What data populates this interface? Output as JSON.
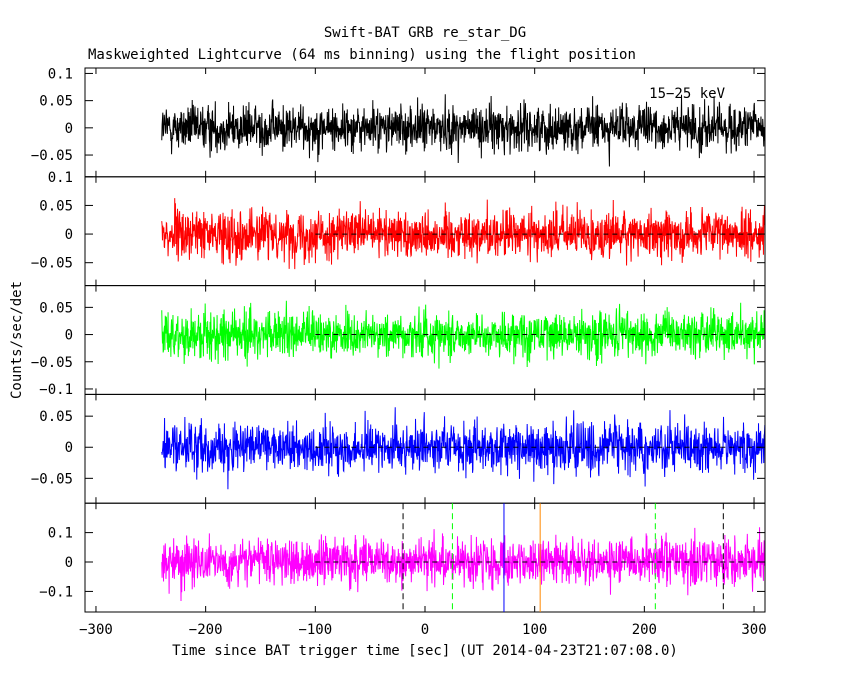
{
  "title": "Swift-BAT GRB re_star_DG",
  "subtitle": "Maskweighted Lightcurve (64 ms binning) using the flight position",
  "xlabel": "Time since BAT trigger time [sec] (UT 2014-04-23T21:07:08.0)",
  "ylabel": "Counts/sec/det",
  "chart_data": {
    "type": "line",
    "title": "Swift-BAT GRB re_star_DG",
    "subtitle": "Maskweighted Lightcurve (64 ms binning) using the flight position",
    "xlabel": "Time since BAT trigger time [sec] (UT 2014-04-23T21:07:08.0)",
    "ylabel": "Counts/sec/det",
    "xlim": [
      -310,
      310
    ],
    "x_ticks": [
      -300,
      -200,
      -100,
      0,
      100,
      200,
      300
    ],
    "x_tick_labels": [
      "−300",
      "−200",
      "−100",
      "0",
      "100",
      "200",
      "300"
    ],
    "data_x_range": [
      -240,
      310
    ],
    "bin_size_s": 0.064,
    "series": [
      {
        "name": "15−25 keV",
        "color": "#000000",
        "ylim": [
          -0.09,
          0.11
        ],
        "y_ticks": [
          -0.05,
          0,
          0.05,
          0.1
        ],
        "y_tick_labels": [
          "−0.05",
          "0",
          "0.05",
          "0.1"
        ],
        "mean": 0.0,
        "spread": 0.065,
        "zero_line": false
      },
      {
        "name": "",
        "color": "#ff0000",
        "ylim": [
          -0.09,
          0.1
        ],
        "y_ticks": [
          -0.05,
          0,
          0.05,
          0.1
        ],
        "y_tick_labels": [
          "−0.05",
          "0",
          "0.05",
          "0.1"
        ],
        "mean": 0.0,
        "spread": 0.065,
        "zero_line": true
      },
      {
        "name": "",
        "color": "#00ff00",
        "ylim": [
          -0.11,
          0.09
        ],
        "y_ticks": [
          -0.1,
          -0.05,
          0,
          0.05
        ],
        "y_tick_labels": [
          "−0.1",
          "−0.05",
          "0",
          "0.05"
        ],
        "mean": 0.0,
        "spread": 0.065,
        "zero_line": true
      },
      {
        "name": "",
        "color": "#0000ff",
        "ylim": [
          -0.09,
          0.085
        ],
        "y_ticks": [
          -0.05,
          0,
          0.05
        ],
        "y_tick_labels": [
          "−0.05",
          "0",
          "0.05"
        ],
        "mean": 0.0,
        "spread": 0.06,
        "zero_line": true
      },
      {
        "name": "",
        "color": "#ff00ff",
        "ylim": [
          -0.17,
          0.2
        ],
        "y_ticks": [
          -0.1,
          0,
          0.1
        ],
        "y_tick_labels": [
          "−0.1",
          "0",
          "0.1"
        ],
        "mean": 0.0,
        "spread": 0.12,
        "zero_line": true
      }
    ],
    "zero_line_x_start": -100,
    "vertical_markers": [
      {
        "x": -20,
        "color": "#000000",
        "style": "dashed"
      },
      {
        "x": 25,
        "color": "#00ff00",
        "style": "dashed"
      },
      {
        "x": 72,
        "color": "#0000ff",
        "style": "solid"
      },
      {
        "x": 105,
        "color": "#ff8800",
        "style": "solid"
      },
      {
        "x": 210,
        "color": "#00ff00",
        "style": "dashed"
      },
      {
        "x": 272,
        "color": "#000000",
        "style": "dashed"
      }
    ],
    "grid": false,
    "legend": "in-panel top-right"
  }
}
